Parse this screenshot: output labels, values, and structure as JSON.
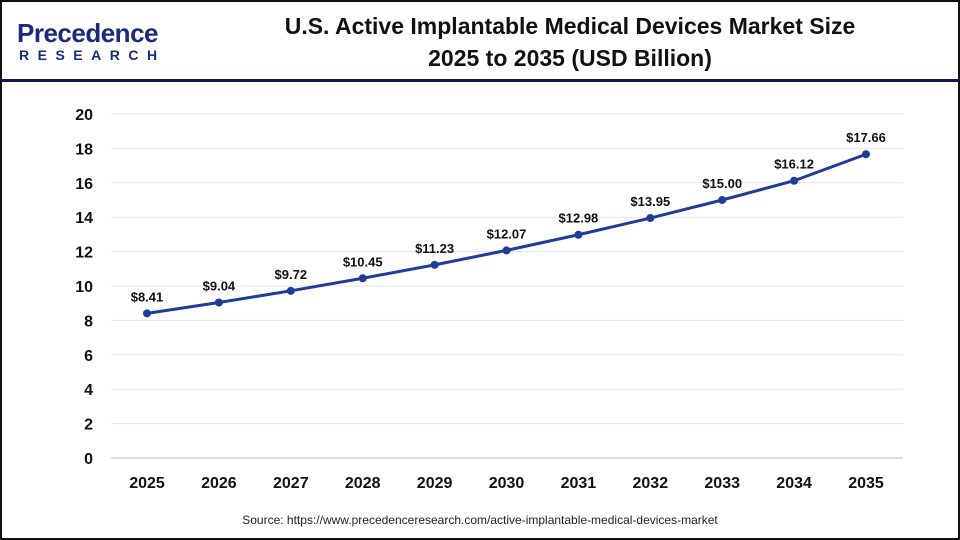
{
  "logo": {
    "line1": "Precedence",
    "line2": "RESEARCH"
  },
  "source": "Source: https://www.precedenceresearch.com/active-implantable-medical-devices-market",
  "chart_data": {
    "type": "line",
    "title": "U.S. Active Implantable Medical Devices Market Size 2025 to 2035 (USD Billion)",
    "title_lines": [
      "U.S. Active Implantable Medical Devices Market Size",
      "2025 to 2035 (USD Billion)"
    ],
    "categories": [
      "2025",
      "2026",
      "2027",
      "2028",
      "2029",
      "2030",
      "2031",
      "2032",
      "2033",
      "2034",
      "2035"
    ],
    "values": [
      8.41,
      9.04,
      9.72,
      10.45,
      11.23,
      12.07,
      12.98,
      13.95,
      15.0,
      16.12,
      17.66
    ],
    "data_labels": [
      "$8.41",
      "$9.04",
      "$9.72",
      "$10.45",
      "$11.23",
      "$12.07",
      "$12.98",
      "$13.95",
      "$15.00",
      "$16.12",
      "$17.66"
    ],
    "ylim": [
      0,
      20
    ],
    "yticks": [
      "0",
      "2",
      "4",
      "6",
      "8",
      "10",
      "12",
      "14",
      "16",
      "18",
      "20"
    ],
    "xlabel": "",
    "ylabel": "",
    "grid": true,
    "legend": "none",
    "line_color": "#1f3c99"
  }
}
